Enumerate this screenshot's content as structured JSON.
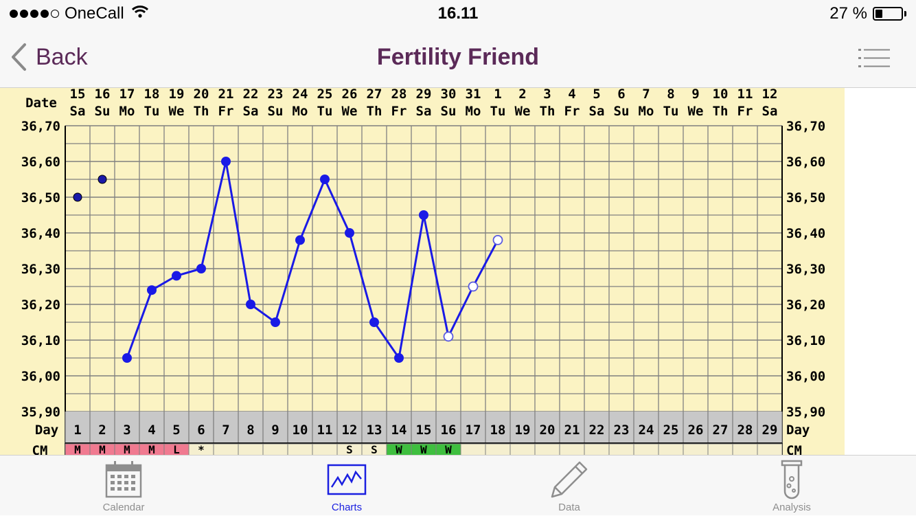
{
  "status_bar": {
    "carrier": "OneCall",
    "time": "16.11",
    "battery_percent": "27 %",
    "battery_level": 0.27,
    "signal_dots_filled": 4,
    "signal_dots_total": 5
  },
  "nav": {
    "back_label": "Back",
    "title": "Fertility Friend"
  },
  "chart_data": {
    "type": "line",
    "date_label": "Date",
    "day_label": "Day",
    "cm_label": "CM",
    "dates": [
      "15",
      "16",
      "17",
      "18",
      "19",
      "20",
      "21",
      "22",
      "23",
      "24",
      "25",
      "26",
      "27",
      "28",
      "29",
      "30",
      "31",
      "1",
      "2",
      "3",
      "4",
      "5",
      "6",
      "7",
      "8",
      "9",
      "10",
      "11",
      "12"
    ],
    "weekdays": [
      "Sa",
      "Su",
      "Mo",
      "Tu",
      "We",
      "Th",
      "Fr",
      "Sa",
      "Su",
      "Mo",
      "Tu",
      "We",
      "Th",
      "Fr",
      "Sa",
      "Su",
      "Mo",
      "Tu",
      "We",
      "Th",
      "Fr",
      "Sa",
      "Su",
      "Mo",
      "Tu",
      "We",
      "Th",
      "Fr",
      "Sa"
    ],
    "days": [
      "1",
      "2",
      "3",
      "4",
      "5",
      "6",
      "7",
      "8",
      "9",
      "10",
      "11",
      "12",
      "13",
      "14",
      "15",
      "16",
      "17",
      "18",
      "19",
      "20",
      "21",
      "22",
      "23",
      "24",
      "25",
      "26",
      "27",
      "28",
      "29"
    ],
    "y_ticks": [
      "36,70",
      "36,60",
      "36,50",
      "36,40",
      "36,30",
      "36,20",
      "36,10",
      "36,00",
      "35,90"
    ],
    "ylim": [
      35.9,
      36.7
    ],
    "temperatures": [
      36.5,
      36.55,
      36.05,
      36.24,
      36.28,
      36.3,
      36.6,
      36.2,
      36.15,
      36.38,
      36.55,
      36.4,
      36.15,
      36.05,
      36.45,
      36.11,
      36.25,
      36.38
    ],
    "open_points_from_day": 16,
    "line_from_day": 3,
    "cm_row": [
      "M",
      "M",
      "M",
      "M",
      "L",
      "*",
      "",
      "",
      "",
      "",
      "",
      "S",
      "S",
      "W",
      "W",
      "W",
      "",
      "",
      "",
      "",
      "",
      "",
      "",
      "",
      "",
      "",
      "",
      "",
      ""
    ],
    "cm_colors": [
      "#f07a90",
      "#f07a90",
      "#f07a90",
      "#f07a90",
      "#f07a90",
      "#f5efcf",
      "#f5efcf",
      "#f5efcf",
      "#f5efcf",
      "#f5efcf",
      "#f5efcf",
      "#f5efcf",
      "#f5efcf",
      "#3fbf3f",
      "#3fbf3f",
      "#3fbf3f",
      "#f5efcf",
      "#f5efcf",
      "#f5efcf",
      "#f5efcf",
      "#f5efcf",
      "#f5efcf",
      "#f5efcf",
      "#f5efcf",
      "#f5efcf",
      "#f5efcf",
      "#f5efcf",
      "#f5efcf",
      "#f5efcf"
    ],
    "background_color": "#fbf3c3",
    "grid_color": "#808080",
    "line_color": "#1a1ae6"
  },
  "tabs": [
    {
      "label": "Calendar",
      "icon": "calendar-icon",
      "active": false
    },
    {
      "label": "Charts",
      "icon": "chart-icon",
      "active": true
    },
    {
      "label": "Data",
      "icon": "pencil-icon",
      "active": false
    },
    {
      "label": "Analysis",
      "icon": "test-tube-icon",
      "active": false
    }
  ],
  "colors": {
    "accent": "#5b2a58",
    "tab_active": "#1a1fe0",
    "tab_inactive": "#8e8e8e"
  }
}
